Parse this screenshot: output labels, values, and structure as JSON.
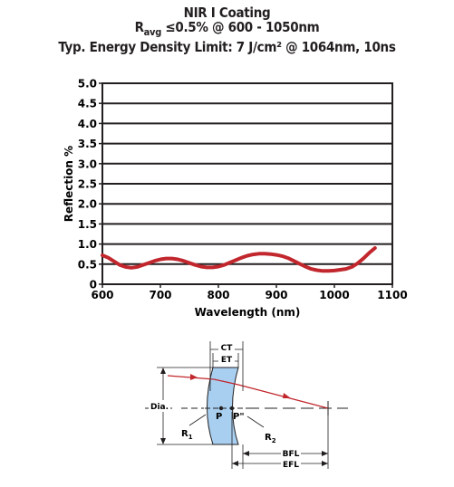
{
  "chart_data": {
    "type": "line",
    "title": "NIR I Coating",
    "subtitle_prefix": "R",
    "subtitle_sub": "avg",
    "subtitle_rest": " ≤0.5% @ 600 - 1050nm",
    "subtitle2": "Typ. Energy Density Limit: 7 J/cm² @ 1064nm, 10ns",
    "xlabel": "Wavelength (nm)",
    "ylabel": "Reflection %",
    "xlim": [
      600,
      1100
    ],
    "ylim": [
      0,
      5.0
    ],
    "xticks": [
      "600",
      "700",
      "800",
      "900",
      "1000",
      "1100"
    ],
    "yticks": [
      "0",
      "0.5",
      "1.0",
      "1.5",
      "2.0",
      "2.5",
      "3.0",
      "3.5",
      "4.0",
      "4.5",
      "5.0"
    ],
    "grid": "horizontal",
    "line_color": "#c1272d",
    "series": [
      {
        "x": [
          600,
          610,
          620,
          630,
          640,
          650,
          660,
          670,
          680,
          690,
          700,
          710,
          720,
          730,
          740,
          750,
          760,
          770,
          780,
          790,
          800,
          810,
          820,
          830,
          840,
          850,
          860,
          870,
          880,
          890,
          900,
          910,
          920,
          930,
          940,
          950,
          960,
          970,
          980,
          990,
          1000,
          1010,
          1020,
          1030,
          1040,
          1050,
          1060,
          1070
        ],
        "y": [
          0.72,
          0.66,
          0.57,
          0.48,
          0.43,
          0.41,
          0.43,
          0.48,
          0.53,
          0.58,
          0.62,
          0.64,
          0.64,
          0.62,
          0.58,
          0.53,
          0.48,
          0.44,
          0.42,
          0.42,
          0.44,
          0.48,
          0.54,
          0.6,
          0.66,
          0.71,
          0.74,
          0.76,
          0.76,
          0.75,
          0.73,
          0.7,
          0.65,
          0.58,
          0.51,
          0.44,
          0.38,
          0.35,
          0.33,
          0.33,
          0.34,
          0.36,
          0.38,
          0.43,
          0.52,
          0.64,
          0.78,
          0.9
        ]
      }
    ]
  },
  "diagram": {
    "ct_label": "CT",
    "et_label": "ET",
    "dia_label": "Dia.",
    "p_label": "P",
    "p_prime_label": "P\"",
    "r1_label": "R",
    "r1_sub": "1",
    "r2_label": "R",
    "r2_sub": "2",
    "bfl_label": "BFL",
    "efl_label": "EFL",
    "lens_color": "#a8cff0",
    "ray_color": "#c1272d"
  }
}
